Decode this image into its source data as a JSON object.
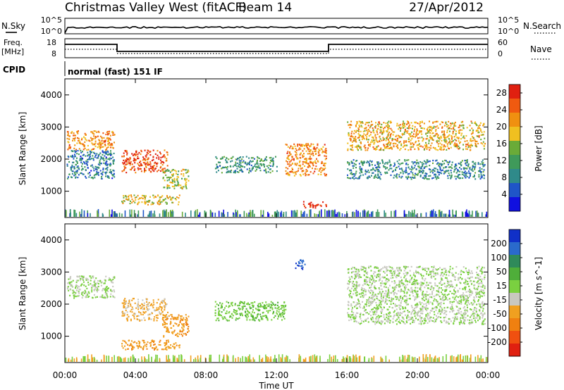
{
  "header": {
    "title": "Christmas Valley West (fitACF)",
    "beam": "Beam 14",
    "date": "27/Apr/2012"
  },
  "noise_panel": {
    "left_label": "N.Sky",
    "right_label": "N.Search",
    "left_ticks": [
      "10^5",
      "10^0"
    ],
    "right_ticks": [
      "10^5",
      "10^0"
    ]
  },
  "freq_panel": {
    "left_label_1": "Freq.",
    "left_label_2": "[MHz]",
    "right_label": "Nave",
    "left_ticks": [
      "18",
      "8"
    ],
    "right_ticks": [
      "60",
      "0"
    ]
  },
  "cpid": {
    "label": "CPID",
    "value": "normal (fast) 151 IF"
  },
  "colors": {
    "power_scale": [
      "#1010e0",
      "#1f55c8",
      "#2f8a8a",
      "#3f9a5a",
      "#6aab38",
      "#f0c020",
      "#f09010",
      "#f05a10",
      "#e02010"
    ],
    "velocity_scale": [
      "#1030c8",
      "#2a6acc",
      "#2f8a5a",
      "#4fae3a",
      "#7ad040",
      "#c8c8c0",
      "#f0a020",
      "#f08010",
      "#f05010",
      "#e02010"
    ]
  },
  "chart_data": [
    {
      "type": "heatmap",
      "title": "",
      "xlabel": "Time UT",
      "ylabel": "Slant Range [km]",
      "xlim": [
        "00:00",
        "24:00"
      ],
      "ylim": [
        180,
        4500
      ],
      "x_ticks": [
        "00:00",
        "04:00",
        "08:00",
        "12:00",
        "16:00",
        "20:00",
        "00:00"
      ],
      "y_ticks": [
        "1000",
        "2000",
        "3000",
        "4000"
      ],
      "colorbar": {
        "label": "Power [dB]",
        "ticks": [
          "4",
          "8",
          "12",
          "16",
          "20",
          "24",
          "28"
        ],
        "range": [
          0,
          30
        ]
      },
      "regions": [
        {
          "t_start": 0.1,
          "t_end": 2.8,
          "r_low": 2300,
          "r_high": 2900,
          "value": 22
        },
        {
          "t_start": 0.1,
          "t_end": 2.8,
          "r_low": 1400,
          "r_high": 2300,
          "value": 8
        },
        {
          "t_start": 3.2,
          "t_end": 5.8,
          "r_low": 1600,
          "r_high": 2300,
          "value": 26
        },
        {
          "t_start": 3.2,
          "t_end": 6.5,
          "r_low": 600,
          "r_high": 900,
          "value": 18
        },
        {
          "t_start": 5.5,
          "t_end": 7.0,
          "r_low": 1100,
          "r_high": 1700,
          "value": 16
        },
        {
          "t_start": 8.5,
          "t_end": 12.0,
          "r_low": 1600,
          "r_high": 2100,
          "value": 10
        },
        {
          "t_start": 12.5,
          "t_end": 14.8,
          "r_low": 1500,
          "r_high": 2500,
          "value": 22
        },
        {
          "t_start": 13.5,
          "t_end": 14.8,
          "r_low": 500,
          "r_high": 700,
          "value": 28
        },
        {
          "t_start": 16.0,
          "t_end": 23.8,
          "r_low": 2300,
          "r_high": 3200,
          "value": 20
        },
        {
          "t_start": 16.0,
          "t_end": 23.8,
          "r_low": 1400,
          "r_high": 2000,
          "value": 9
        }
      ]
    },
    {
      "type": "heatmap",
      "title": "",
      "xlabel": "Time UT",
      "ylabel": "Slant Range [km]",
      "xlim": [
        "00:00",
        "24:00"
      ],
      "ylim": [
        180,
        4500
      ],
      "x_ticks": [
        "00:00",
        "04:00",
        "08:00",
        "12:00",
        "16:00",
        "20:00",
        "00:00"
      ],
      "y_ticks": [
        "1000",
        "2000",
        "3000",
        "4000"
      ],
      "colorbar": {
        "label": "Velocity [m s^-1]",
        "ticks": [
          "200",
          "100",
          "50",
          "15",
          "-15",
          "-50",
          "-100",
          "-200"
        ],
        "range": [
          -250,
          250
        ]
      },
      "regions": [
        {
          "t_start": 0.1,
          "t_end": 2.8,
          "r_low": 2200,
          "r_high": 2900,
          "value": 0
        },
        {
          "t_start": 3.2,
          "t_end": 5.8,
          "r_low": 1500,
          "r_high": 2200,
          "value": -60
        },
        {
          "t_start": 3.2,
          "t_end": 6.5,
          "r_low": 600,
          "r_high": 900,
          "value": -80
        },
        {
          "t_start": 5.5,
          "t_end": 7.0,
          "r_low": 1000,
          "r_high": 1700,
          "value": -90
        },
        {
          "t_start": 8.5,
          "t_end": 12.5,
          "r_low": 1500,
          "r_high": 2100,
          "value": 40
        },
        {
          "t_start": 13.0,
          "t_end": 13.6,
          "r_low": 3100,
          "r_high": 3400,
          "value": 200
        },
        {
          "t_start": 16.0,
          "t_end": 23.8,
          "r_low": 1400,
          "r_high": 3200,
          "value": 0
        }
      ]
    }
  ]
}
